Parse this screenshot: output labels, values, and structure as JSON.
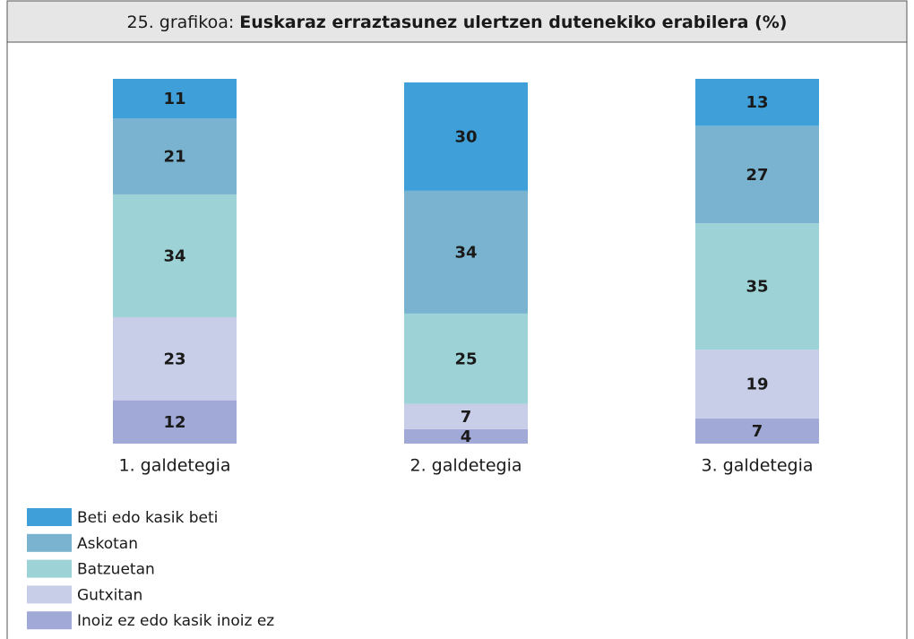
{
  "chart_data": {
    "type": "stacked_bar",
    "title_label": "25. grafikoa:",
    "title": "Euskaraz erraztasunez ulertzen dutenekiko erabilera (%)",
    "categories": [
      "1. galdetegia",
      "2. galdetegia",
      "3. galdetegia"
    ],
    "series": [
      {
        "name": "Beti edo kasik beti",
        "color": "#3fa0d9",
        "values": [
          11,
          30,
          13
        ]
      },
      {
        "name": "Askotan",
        "color": "#7ab3cf",
        "values": [
          21,
          34,
          27
        ]
      },
      {
        "name": "Batzuetan",
        "color": "#9dd3d6",
        "values": [
          34,
          25,
          35
        ]
      },
      {
        "name": "Gutxitan",
        "color": "#c8cde8",
        "values": [
          23,
          7,
          19
        ]
      },
      {
        "name": "Inoiz ez edo kasik inoiz ez",
        "color": "#a1aad6",
        "values": [
          12,
          4,
          7
        ]
      }
    ]
  }
}
